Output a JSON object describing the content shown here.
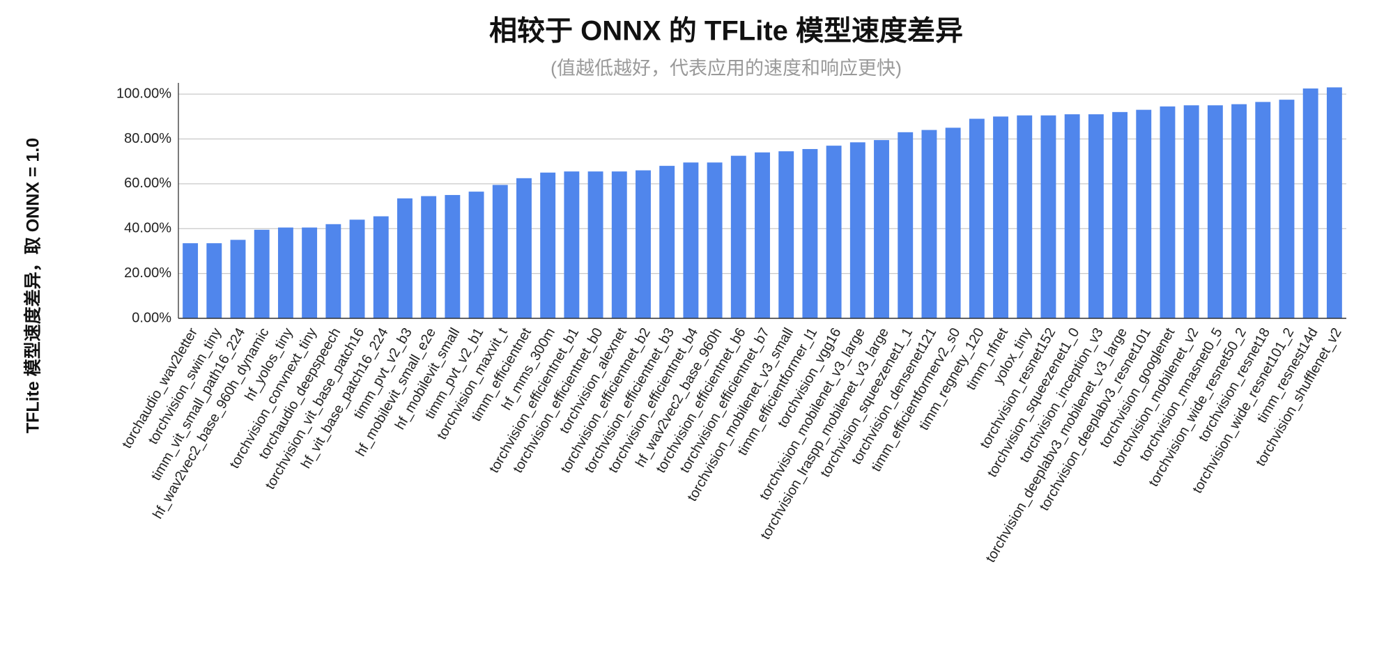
{
  "chart_data": {
    "type": "bar",
    "title": "相较于 ONNX 的 TFLite 模型速度差异",
    "subtitle": "(值越低越好，代表应用的速度和响应更快)",
    "y_label": "TFLite 模型速度差异，取 ONNX = 1.0",
    "categories": [
      "torchaudio_wav2letter",
      "torchvision_swin_tiny",
      "timm_vit_small_path16_224",
      "hf_wav2vec2_base_960h_dynamic",
      "hf_yolos_tiny",
      "torchvision_convnext_tiny",
      "torchaudio_deepspeech",
      "torchvision_vit_base_patch16",
      "hf_vit_base_patch16_224",
      "timm_pvt_v2_b3",
      "hf_mobilevit_small_e2e",
      "hf_mobilevit_small",
      "timm_pvt_v2_b1",
      "torchvision_maxvit_t",
      "timm_efficientnet",
      "hf_mms_300m",
      "torchvision_efficientnet_b1",
      "torchvision_efficientnet_b0",
      "torchvision_alexnet",
      "torchvision_efficientnet_b2",
      "torchvision_efficientnet_b3",
      "torchvision_efficientnet_b4",
      "hf_wav2vec2_base_960h",
      "torchvision_efficientnet_b6",
      "torchvision_efficientnet_b7",
      "torchvision_mobilenet_v3_small",
      "timm_efficientformer_l1",
      "torchvision_vgg16",
      "torchvision_mobilenet_v3_large",
      "torchvision_lraspp_mobilenet_v3_large",
      "torchvision_squeezenet1_1",
      "torchvision_densenet121",
      "timm_efficientformerv2_s0",
      "timm_regnety_120",
      "timm_nfnet",
      "yolox_tiny",
      "torchvision_resnet152",
      "torchvision_squeezenet1_0",
      "torchvision_inception_v3",
      "torchvision_deeplabv3_mobilenet_v3_large",
      "torchvision_deeplabv3_resnet101",
      "torchvision_googlenet",
      "torchvision_mobilenet_v2",
      "torchvision_mnasnet0_5",
      "torchvision_wide_resnet50_2",
      "torchvision_resnet18",
      "torchvision_wide_resnet101_2",
      "timm_resnest14d",
      "torchvision_shufflenet_v2"
    ],
    "values": [
      33.5,
      33.5,
      35,
      39.5,
      40.5,
      40.5,
      42,
      44,
      45.5,
      53.5,
      54.5,
      55,
      56.5,
      59.5,
      62.5,
      65,
      65.5,
      65.5,
      65.5,
      66,
      68,
      69.5,
      69.5,
      72.5,
      74,
      74.5,
      75.5,
      77,
      78.5,
      79.5,
      83,
      84,
      85,
      89,
      90,
      90.5,
      90.5,
      91,
      91,
      92,
      93,
      94.5,
      95,
      95,
      95.5,
      96.5,
      97.5,
      102.5,
      103
    ],
    "color": "#5086ec",
    "ylim": [
      0,
      105
    ],
    "yticks": [
      {
        "value": 0,
        "label": "0.00%"
      },
      {
        "value": 20,
        "label": "20.00%"
      },
      {
        "value": 40,
        "label": "40.00%"
      },
      {
        "value": 60,
        "label": "60.00%"
      },
      {
        "value": 80,
        "label": "80.00%"
      },
      {
        "value": 100,
        "label": "100.00%"
      }
    ],
    "grid": true
  }
}
